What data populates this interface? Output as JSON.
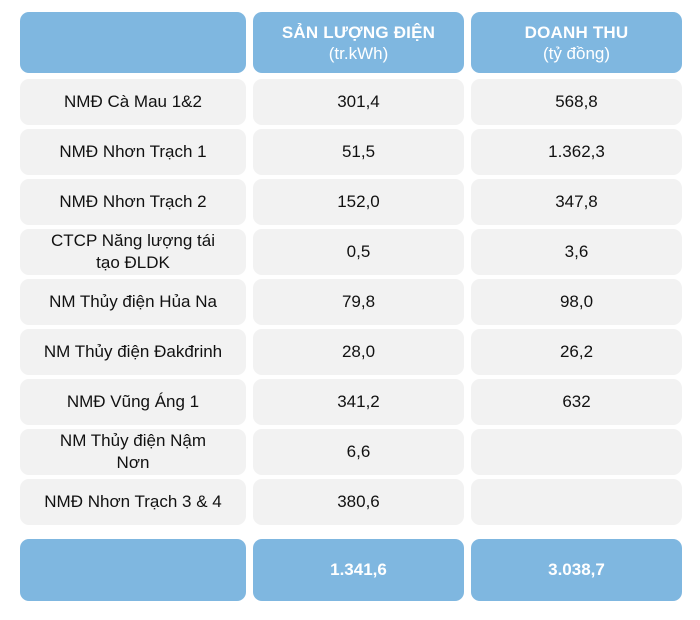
{
  "table": {
    "columns": [
      {
        "title": "",
        "unit": ""
      },
      {
        "title": "SẢN LƯỢNG ĐIỆN",
        "unit": "(tr.kWh)"
      },
      {
        "title": "DOANH THU",
        "unit": "(tỷ đồng)"
      }
    ],
    "rows": [
      {
        "plant": "NMĐ Cà Mau 1&2",
        "output": "301,4",
        "revenue": "568,8"
      },
      {
        "plant": "NMĐ Nhơn Trạch 1",
        "output": "51,5",
        "revenue": "1.362,3"
      },
      {
        "plant": "NMĐ Nhơn Trạch 2",
        "output": "152,0",
        "revenue": "347,8"
      },
      {
        "plant": "CTCP Năng lượng tái tạo ĐLDK",
        "output": "0,5",
        "revenue": "3,6"
      },
      {
        "plant": "NM Thủy điện Hủa Na",
        "output": "79,8",
        "revenue": "98,0"
      },
      {
        "plant": "NM Thủy điện Đakđrinh",
        "output": "28,0",
        "revenue": "26,2"
      },
      {
        "plant": "NMĐ Vũng Áng 1",
        "output": "341,2",
        "revenue": "632"
      },
      {
        "plant": "NM Thủy điện Nậm Nơn",
        "output": "6,6",
        "revenue": ""
      },
      {
        "plant": "NMĐ Nhơn Trạch 3 & 4",
        "output": "380,6",
        "revenue": ""
      }
    ],
    "totals": {
      "label": "",
      "output": "1.341,6",
      "revenue": "3.038,7"
    }
  },
  "colors": {
    "header_bg": "#7fb7e0",
    "cell_bg": "#f2f2f2",
    "header_text": "#ffffff"
  }
}
